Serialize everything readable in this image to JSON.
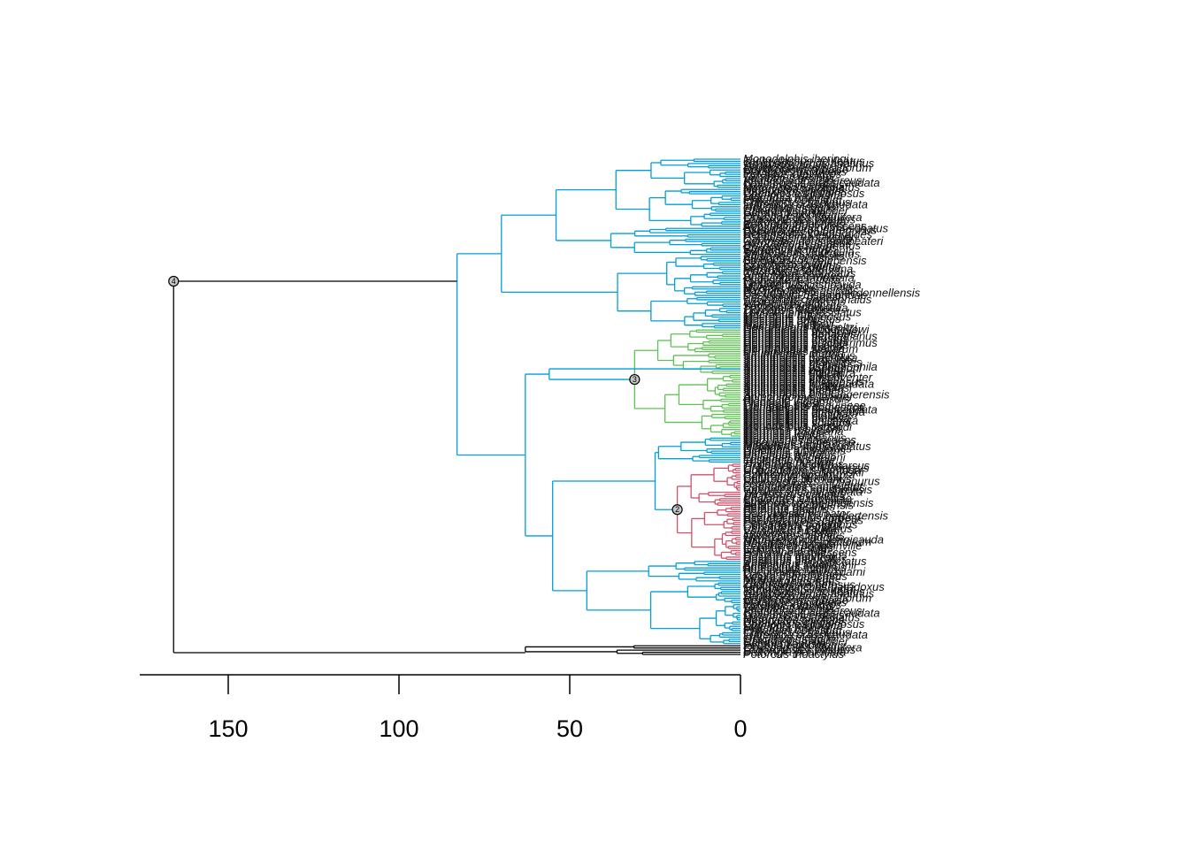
{
  "colors": {
    "background": "#009edb",
    "clade_green": "#5dc251",
    "clade_red": "#d0506a",
    "root": "#000000"
  },
  "axis": {
    "ticks": [
      150,
      100,
      50,
      0
    ],
    "tick_labels": [
      "150",
      "100",
      "50",
      "0"
    ]
  },
  "node_markers": [
    {
      "label": "4",
      "age": 166
    },
    {
      "label": "3",
      "age": 31
    },
    {
      "label": "2",
      "age": 18.5
    }
  ],
  "tips": {
    "legible": [
      "Monodelphis iheringi",
      "Tachyglossus aculeatus",
      "Ornithorhynchus anatinus",
      "Zaglossus bruijni",
      "Rhynchomeles prattorum",
      "Dendrolagus mbaiso",
      "Macropus giganteus",
      "Petaurus breviceps",
      "Tarsipes rostratus",
      "Vombatus ursinus",
      "Phascolarctos cinereus",
      "Sminthopsis crassicaudata",
      "Dasyurus viverrinus",
      "Myrmecobius fasciatus",
      "Notoryctes typhlops",
      "Dromiciops gliroides",
      "Caenolestes fuliginosus",
      "Didelphis virginiana",
      "Marmosa murina",
      "Philander opossum",
      "Chironectes minimus",
      "Lutreolina crassicaudata",
      "Thylamys elegans",
      "Gracilinanus agilis",
      "Caluromys philander",
      "Glironia venusta",
      "Petrogale godmani",
      "Onychogalea unguifera",
      "Lagorchestes hirsutus",
      "Bettongia penicillata",
      "Potorous tridactylus",
      "Aepyprymnus rufescens",
      "Hypsiprymnodon moschatus",
      "Pseudocheirus peregrinus",
      "Petauroides volans",
      "Hemibelideus lemuroides",
      "Pseudochirops archeri",
      "Dactylopsila trivirgata",
      "Gymnobelideus leadbeateri",
      "Acrobates pygmaeus",
      "Distoechurus pennatus",
      "Cercartetus nanus",
      "Burramys parvus",
      "Trichosurus vulpecula",
      "Spilocuscus maculatus",
      "Phalanger orientalis",
      "Ailurops ursinus",
      "Strigocuscus celebensis",
      "Perameles gunnii",
      "Isoodon macrourus",
      "Echymipera kalubu",
      "Peroryctes raffrayana",
      "Macrotis lagotis",
      "Chaeropus ecaudatus",
      "Antechinus flavipes",
      "Phascogale tapoatafa",
      "Planigale maculata",
      "Ningaui ridei",
      "Dasycercus cristicauda",
      "Murexia longicaudata",
      "Myoictis melas",
      "Parantechinus apicalis",
      "Pseudantechinus macdonnellensis",
      "Dasykaluta rosamondae",
      "Sarcophilus harrisii",
      "Thylacinus cynocephalus",
      "Lasiorhinus latifrons",
      "Wallabia bicolor",
      "Setonix brachyurus",
      "Thylogale stigmatica",
      "Dorcopsis luctuosa",
      "Lagostrophus fasciatus",
      "Macropus rufus",
      "Macropus fuliginosus",
      "Macropus robustus",
      "Macropus agilis",
      "Macropus eugenii",
      "Macropus parma",
      "Dendrolagus lumholtzi",
      "Dendrolagus goodfellowi",
      "Dendrolagus matschiei",
      "Dendrolagus dorianus",
      "Dendrolagus bennettianus",
      "Dendrolagus inustus",
      "Dendrolagus ursinus",
      "Dendrolagus pulcherrimus",
      "Dendrolagus scottae",
      "Dendrolagus spadix",
      "Dendrolagus stellarum",
      "Dendrolagus mayri",
      "Sminthopsis murina",
      "Sminthopsis leucopus",
      "Sminthopsis macroura",
      "Sminthopsis virginiae",
      "Sminthopsis granulipes",
      "Sminthopsis hirtipes",
      "Sminthopsis psammophila",
      "Sminthopsis youngsoni",
      "Sminthopsis ooldea",
      "Sminthopsis dolichura",
      "Sminthopsis gilberti",
      "Sminthopsis griseoventer",
      "Sminthopsis aitkeni",
      "Sminthopsis fuliginosus",
      "Sminthopsis longicaudata",
      "Sminthopsis butleri",
      "Sminthopsis douglasi",
      "Sminthopsis archeri",
      "Sminthopsis bindi",
      "Sminthopsis boullangerensis",
      "Antechinomys laniger",
      "Planigale tenuirostris",
      "Planigale ingrami",
      "Planigale gilesi",
      "Planigale novaeguineae",
      "Monodelphis domestica",
      "Monodelphis brevicaudata",
      "Monodelphis americana",
      "Monodelphis dimidiata",
      "Monodelphis emiliae",
      "Monodelphis theresa",
      "Monodelphis unistriata",
      "Monodelphis scalops",
      "Monodelphis kunsi",
      "Monodelphis osgoodi",
      "Marmosa robinsoni",
      "Marmosa mexicana",
      "Marmosa lepida",
      "Marmosa rubra",
      "Marmosops incanus",
      "Marmosops parvidens",
      "Micoureus demerarae",
      "Micoureus regina",
      "Metachirus nudicaudatus",
      "Didelphis marsupialis",
      "Didelphis albiventris",
      "Didelphis aurita",
      "Philander frenatus",
      "Philander andersoni",
      "Lestodelphys halli",
      "Thylamys pusillus",
      "Thylamys macrurus",
      "Gracilinanus microtarsus",
      "Cryptonanus chacoensis",
      "Chacodelphys formosa",
      "Hyladelphys kalinowskii",
      "Caluromysiops irrupta",
      "Caluromys lanatus",
      "Caluromys derbianus",
      "Rhyncholestes raphanurus",
      "Lestoros inca",
      "Caenolestes caniventer",
      "Caenolestes convelatus",
      "Caenolestes condorensis",
      "Wyulda squamicaudata",
      "Trichosurus caninus",
      "Phalanger gymnotis",
      "Phalanger carmelitae",
      "Spilocuscus rufoniger",
      "Strigocuscus pelengensis",
      "Petaurus norfolcensis",
      "Petaurus australis",
      "Petaurus gracilis",
      "Petaurus abidi",
      "Dactylopsila palpator",
      "Pseudochirulus herbertensis",
      "Pseudochirulus forbesi",
      "Pseudochirops cupreus",
      "Petropseudes dahli",
      "Cercartetus concinnus",
      "Cercartetus lepidus",
      "Cercartetus caudatus",
      "Vombatus hirsutus",
      "Lasiorhinus krefftii",
      "Notoryctes caurinus",
      "Thylacomys lagotis",
      "Microperoryctes longicauda",
      "Rhynchomeles prattorum",
      "Perameles nasuta",
      "Perameles bougainville",
      "Isoodon obesulus",
      "Isoodon auratus",
      "Echymipera rufescens",
      "Dasyurus maculatus",
      "Dasyurus geoffroii",
      "Dasyurus hallucatus",
      "Dasyurus albopunctatus",
      "Antechinus stuartii",
      "Antechinus swainsonii",
      "Antechinus minimus",
      "Phascogale calura",
      "Pseudantechinus bilarni",
      "Dasyuroides byrnei",
      "Kaluta pseudochirus",
      "Ningaui yvonneae",
      "Myrmecobius rufus",
      "Zaglossus bartoni",
      "Tachyglossus setosus",
      "Ornithorhynchus paradoxus"
    ],
    "marks_legible": [
      "Monodelphis iheringi",
      "Rhyncholestes raphanurus",
      "Pseudantechinus macdonnellensis",
      "Hypsiprymnodon moschatus",
      "Gymnobelideus leadbeateri",
      "Tachyglossus aculeatus",
      "Dromiciops gliroides",
      "Sminthopsis griseoventer",
      "Marmosa lepida",
      "Antechinus flavipes"
    ]
  }
}
